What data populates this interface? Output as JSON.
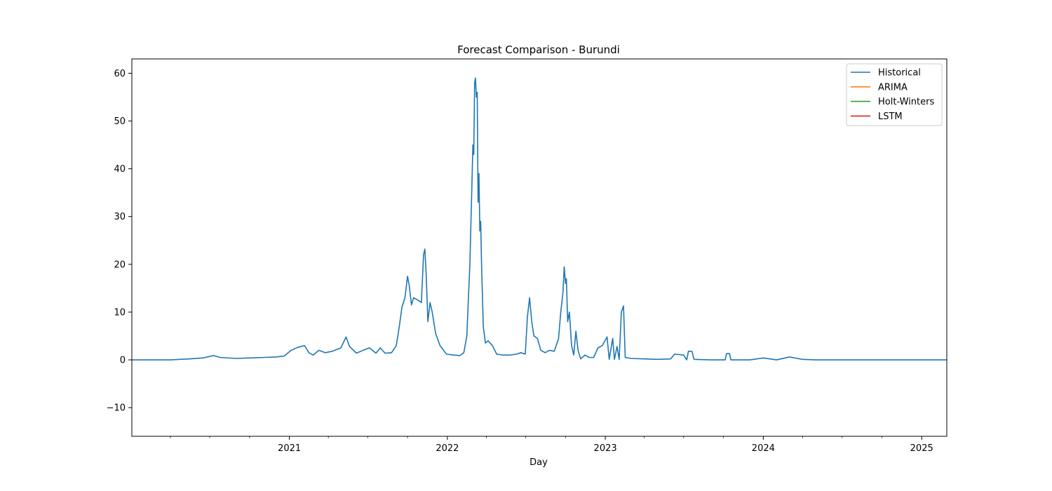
{
  "chart_data": {
    "type": "line",
    "title": "Forecast Comparison - Burundi",
    "xlabel": "Day",
    "ylabel": "",
    "xlim": [
      "2020-01-03",
      "2025-02-28"
    ],
    "ylim": [
      -16,
      63
    ],
    "yticks": [
      -10,
      0,
      10,
      20,
      30,
      40,
      50,
      60
    ],
    "xticks": [
      {
        "date": "2021-01-01",
        "label": "2021"
      },
      {
        "date": "2022-01-01",
        "label": "2022"
      },
      {
        "date": "2023-01-01",
        "label": "2023"
      },
      {
        "date": "2024-01-01",
        "label": "2024"
      },
      {
        "date": "2025-01-01",
        "label": "2025"
      }
    ],
    "grid": false,
    "legend_position": "top-right",
    "series": [
      {
        "name": "Historical",
        "color": "#1f77b4",
        "points": [
          [
            "2020-01-03",
            0
          ],
          [
            "2020-04-01",
            0
          ],
          [
            "2020-05-15",
            0.2
          ],
          [
            "2020-06-15",
            0.4
          ],
          [
            "2020-07-10",
            0.9
          ],
          [
            "2020-07-25",
            0.5
          ],
          [
            "2020-09-01",
            0.3
          ],
          [
            "2020-10-01",
            0.4
          ],
          [
            "2020-11-01",
            0.5
          ],
          [
            "2020-12-01",
            0.6
          ],
          [
            "2020-12-20",
            0.8
          ],
          [
            "2021-01-05",
            2.0
          ],
          [
            "2021-01-20",
            2.6
          ],
          [
            "2021-02-05",
            3.0
          ],
          [
            "2021-02-15",
            1.5
          ],
          [
            "2021-02-25",
            1.0
          ],
          [
            "2021-03-10",
            2.0
          ],
          [
            "2021-03-25",
            1.5
          ],
          [
            "2021-04-10",
            1.8
          ],
          [
            "2021-04-30",
            2.5
          ],
          [
            "2021-05-12",
            4.8
          ],
          [
            "2021-05-20",
            2.8
          ],
          [
            "2021-06-05",
            1.4
          ],
          [
            "2021-06-20",
            2.0
          ],
          [
            "2021-07-05",
            2.5
          ],
          [
            "2021-07-20",
            1.4
          ],
          [
            "2021-07-30",
            2.5
          ],
          [
            "2021-08-10",
            1.4
          ],
          [
            "2021-08-25",
            1.5
          ],
          [
            "2021-09-05",
            3.0
          ],
          [
            "2021-09-12",
            7.0
          ],
          [
            "2021-09-18",
            11.0
          ],
          [
            "2021-09-25",
            13.0
          ],
          [
            "2021-10-01",
            17.5
          ],
          [
            "2021-10-05",
            15.5
          ],
          [
            "2021-10-10",
            11.5
          ],
          [
            "2021-10-15",
            13.0
          ],
          [
            "2021-10-25",
            12.5
          ],
          [
            "2021-11-02",
            12.0
          ],
          [
            "2021-11-07",
            22.0
          ],
          [
            "2021-11-10",
            23.2
          ],
          [
            "2021-11-13",
            18.0
          ],
          [
            "2021-11-17",
            8.0
          ],
          [
            "2021-11-22",
            12.0
          ],
          [
            "2021-11-27",
            10.0
          ],
          [
            "2021-12-05",
            5.5
          ],
          [
            "2021-12-15",
            3.0
          ],
          [
            "2021-12-30",
            1.2
          ],
          [
            "2022-01-15",
            1.0
          ],
          [
            "2022-01-30",
            0.9
          ],
          [
            "2022-02-08",
            1.5
          ],
          [
            "2022-02-15",
            5.0
          ],
          [
            "2022-02-22",
            20.0
          ],
          [
            "2022-02-26",
            34.0
          ],
          [
            "2022-03-01",
            45.0
          ],
          [
            "2022-03-03",
            43.0
          ],
          [
            "2022-03-05",
            58.0
          ],
          [
            "2022-03-07",
            59.0
          ],
          [
            "2022-03-09",
            55.0
          ],
          [
            "2022-03-11",
            56.0
          ],
          [
            "2022-03-13",
            33.0
          ],
          [
            "2022-03-15",
            39.0
          ],
          [
            "2022-03-17",
            27.0
          ],
          [
            "2022-03-19",
            29.0
          ],
          [
            "2022-03-21",
            20.0
          ],
          [
            "2022-03-25",
            7.0
          ],
          [
            "2022-03-30",
            3.5
          ],
          [
            "2022-04-05",
            4.0
          ],
          [
            "2022-04-15",
            3.0
          ],
          [
            "2022-04-25",
            1.2
          ],
          [
            "2022-05-10",
            1.0
          ],
          [
            "2022-05-25",
            1.0
          ],
          [
            "2022-06-10",
            1.2
          ],
          [
            "2022-06-20",
            1.5
          ],
          [
            "2022-06-30",
            1.2
          ],
          [
            "2022-07-05",
            9.0
          ],
          [
            "2022-07-10",
            13.0
          ],
          [
            "2022-07-15",
            8.0
          ],
          [
            "2022-07-20",
            5.0
          ],
          [
            "2022-07-28",
            4.5
          ],
          [
            "2022-08-05",
            2.0
          ],
          [
            "2022-08-15",
            1.5
          ],
          [
            "2022-08-25",
            2.0
          ],
          [
            "2022-09-05",
            1.8
          ],
          [
            "2022-09-15",
            4.5
          ],
          [
            "2022-09-20",
            10.0
          ],
          [
            "2022-09-25",
            14.0
          ],
          [
            "2022-09-28",
            19.5
          ],
          [
            "2022-10-01",
            16.0
          ],
          [
            "2022-10-03",
            17.0
          ],
          [
            "2022-10-06",
            8.0
          ],
          [
            "2022-10-10",
            10.0
          ],
          [
            "2022-10-15",
            3.0
          ],
          [
            "2022-10-20",
            1.0
          ],
          [
            "2022-10-25",
            6.0
          ],
          [
            "2022-10-30",
            2.0
          ],
          [
            "2022-11-05",
            0.2
          ],
          [
            "2022-11-15",
            1.0
          ],
          [
            "2022-11-25",
            0.5
          ],
          [
            "2022-12-05",
            0.5
          ],
          [
            "2022-12-15",
            2.5
          ],
          [
            "2022-12-25",
            3.0
          ],
          [
            "2023-01-05",
            4.8
          ],
          [
            "2023-01-10",
            0.1
          ],
          [
            "2023-01-18",
            4.5
          ],
          [
            "2023-01-22",
            0.1
          ],
          [
            "2023-01-28",
            2.8
          ],
          [
            "2023-02-02",
            0.1
          ],
          [
            "2023-02-07",
            10.0
          ],
          [
            "2023-02-12",
            11.3
          ],
          [
            "2023-02-16",
            0.5
          ],
          [
            "2023-03-01",
            0.3
          ],
          [
            "2023-04-01",
            0.2
          ],
          [
            "2023-05-01",
            0.1
          ],
          [
            "2023-06-01",
            0.2
          ],
          [
            "2023-06-10",
            1.2
          ],
          [
            "2023-07-01",
            1.0
          ],
          [
            "2023-07-08",
            0.0
          ],
          [
            "2023-07-12",
            1.8
          ],
          [
            "2023-07-20",
            1.8
          ],
          [
            "2023-07-25",
            0.1
          ],
          [
            "2023-09-01",
            0.0
          ],
          [
            "2023-10-05",
            0.0
          ],
          [
            "2023-10-08",
            1.3
          ],
          [
            "2023-10-15",
            1.3
          ],
          [
            "2023-10-18",
            0.0
          ],
          [
            "2023-12-01",
            0.0
          ],
          [
            "2024-01-01",
            0.4
          ],
          [
            "2024-02-01",
            0.0
          ],
          [
            "2024-03-01",
            0.6
          ],
          [
            "2024-04-01",
            0.1
          ],
          [
            "2024-05-01",
            0.0
          ],
          [
            "2025-02-28",
            0.0
          ]
        ]
      },
      {
        "name": "ARIMA",
        "color": "#ff7f0e",
        "points": []
      },
      {
        "name": "Holt-Winters",
        "color": "#2ca02c",
        "points": []
      },
      {
        "name": "LSTM",
        "color": "#d62728",
        "points": []
      }
    ]
  }
}
